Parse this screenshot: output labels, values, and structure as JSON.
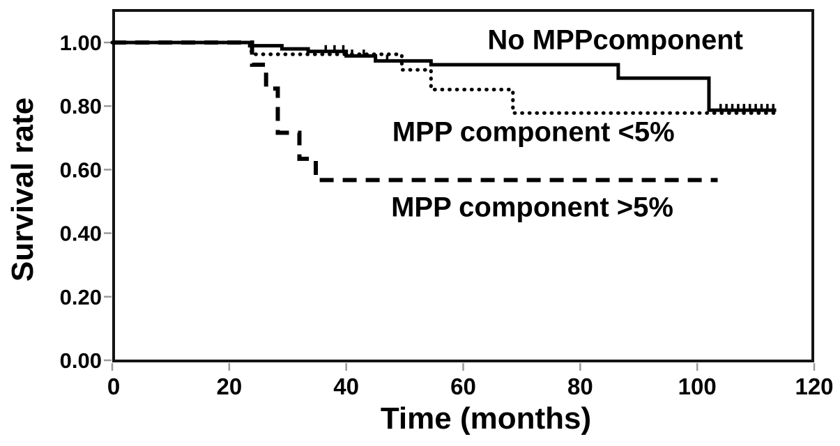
{
  "figure": {
    "background_color": "#ffffff",
    "text_color": "#000000"
  },
  "chart_data": {
    "type": "line",
    "subtype": "kaplan-meier-step-curves",
    "title": "",
    "xlabel": "Time (months)",
    "ylabel": "Survival rate",
    "xlim": [
      0,
      120
    ],
    "ylim": [
      0,
      1.1
    ],
    "grid": false,
    "legend_position": "inline-annotations",
    "axis_color": "#141414",
    "tick_color": "#9a9a9a",
    "line_color": "#000000",
    "x_ticks": [
      {
        "label": "0",
        "value": 0
      },
      {
        "label": "20",
        "value": 20
      },
      {
        "label": "40",
        "value": 40
      },
      {
        "label": "60",
        "value": 60
      },
      {
        "label": "80",
        "value": 80
      },
      {
        "label": "100",
        "value": 100
      },
      {
        "label": "120",
        "value": 120
      }
    ],
    "y_ticks": [
      {
        "label": "1.00",
        "value": 1.0
      },
      {
        "label": "0.80",
        "value": 0.8
      },
      {
        "label": "0.60",
        "value": 0.6
      },
      {
        "label": "0.40",
        "value": 0.4
      },
      {
        "label": "0.20",
        "value": 0.2
      },
      {
        "label": "0.00",
        "value": 0.0
      }
    ],
    "series": [
      {
        "name": "No MPPcomponent",
        "line_style": "solid",
        "points": [
          [
            0,
            1.0
          ],
          [
            23.5,
            1.0
          ],
          [
            23.5,
            0.99
          ],
          [
            29,
            0.99
          ],
          [
            29,
            0.98
          ],
          [
            33.5,
            0.98
          ],
          [
            33.5,
            0.972
          ],
          [
            40,
            0.972
          ],
          [
            40,
            0.958
          ],
          [
            45,
            0.958
          ],
          [
            45,
            0.942
          ],
          [
            54.5,
            0.942
          ],
          [
            54.5,
            0.93
          ],
          [
            86.5,
            0.93
          ],
          [
            86.5,
            0.888
          ],
          [
            102,
            0.888
          ],
          [
            102,
            0.787
          ],
          [
            113.5,
            0.787
          ]
        ],
        "censor_marks": [
          36.5,
          38,
          39.5,
          41,
          43,
          45,
          47,
          104,
          105,
          106,
          107,
          108,
          109,
          110,
          111,
          112,
          113
        ]
      },
      {
        "name": "MPP component <5%",
        "line_style": "dotted",
        "points": [
          [
            0,
            1.0
          ],
          [
            23.8,
            1.0
          ],
          [
            23.8,
            0.963
          ],
          [
            49.5,
            0.963
          ],
          [
            49.5,
            0.914
          ],
          [
            54.5,
            0.914
          ],
          [
            54.5,
            0.852
          ],
          [
            68.5,
            0.852
          ],
          [
            68.5,
            0.778
          ],
          [
            114,
            0.778
          ]
        ],
        "censor_marks": []
      },
      {
        "name": "MPP component >5%",
        "line_style": "dashed",
        "points": [
          [
            0,
            1.0
          ],
          [
            23.9,
            1.0
          ],
          [
            23.9,
            0.93
          ],
          [
            26.3,
            0.93
          ],
          [
            26.3,
            0.855
          ],
          [
            28.3,
            0.855
          ],
          [
            28.3,
            0.716
          ],
          [
            32,
            0.716
          ],
          [
            32,
            0.634
          ],
          [
            34.8,
            0.634
          ],
          [
            34.8,
            0.567
          ],
          [
            103.5,
            0.567
          ]
        ],
        "censor_marks": []
      }
    ],
    "annotations": [
      {
        "text": "No MPPcomponent",
        "x": 86.0,
        "y": 1.007
      },
      {
        "text": "MPP component <5%",
        "x": 72.0,
        "y": 0.717
      },
      {
        "text": "MPP component >5%",
        "x": 71.8,
        "y": 0.48
      }
    ]
  }
}
